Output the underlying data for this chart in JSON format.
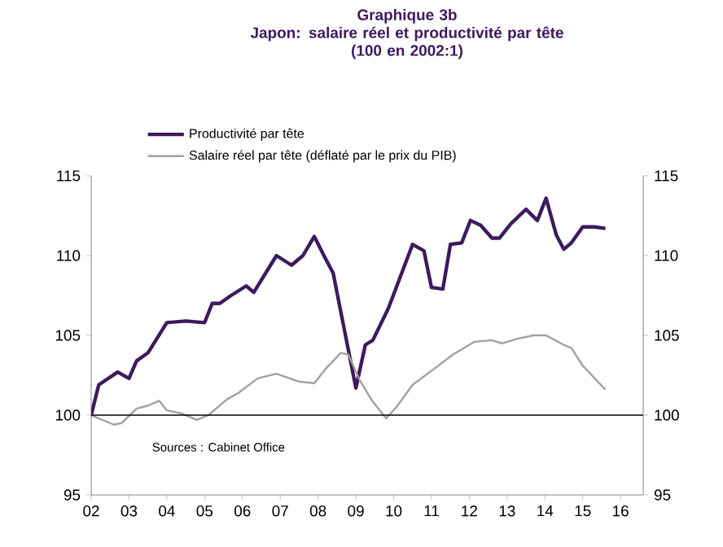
{
  "chart_data": {
    "type": "line",
    "title": "Graphique 3b\nJapon: salaire réel  et  productivité par tête\n(100 en 2002:1)",
    "series": [
      {
        "name": "Productivité par tête",
        "color": "#3d1a5e",
        "x": [
          2002,
          2002.2,
          2002.7,
          2003,
          2003.2,
          2003.5,
          2004.0,
          2004.5,
          2005,
          2005.2,
          2005.4,
          2005.7,
          2006.1,
          2006.3,
          2006.9,
          2007.3,
          2007.6,
          2007.9,
          2008.2,
          2008.4,
          2009.0,
          2009.25,
          2009.45,
          2009.86,
          2010.5,
          2010.8,
          2011.0,
          2011.3,
          2011.5,
          2011.8,
          2012.03,
          2012.3,
          2012.6,
          2012.8,
          2013.1,
          2013.5,
          2013.8,
          2014.03,
          2014.3,
          2014.5,
          2014.7,
          2015.0,
          2015.3,
          2015.6
        ],
        "values": [
          100,
          101.9,
          102.7,
          102.3,
          103.4,
          103.9,
          105.8,
          105.9,
          105.8,
          107.0,
          107.0,
          107.5,
          108.1,
          107.7,
          110.0,
          109.4,
          110.0,
          111.2,
          109.8,
          108.9,
          101.7,
          104.4,
          104.7,
          106.7,
          110.7,
          110.3,
          108.0,
          107.9,
          110.7,
          110.8,
          112.2,
          111.9,
          111.1,
          111.1,
          112.0,
          112.9,
          112.2,
          113.6,
          111.3,
          110.4,
          110.8,
          111.8,
          111.8,
          111.7
        ]
      },
      {
        "name": "Salaire réel par tête (déflaté par le prix du PIB)",
        "color": "#a0a0a0",
        "x": [
          2002,
          2002.6,
          2002.8,
          2003.2,
          2003.5,
          2003.8,
          2004.0,
          2004.4,
          2004.8,
          2005.1,
          2005.6,
          2005.9,
          2006.4,
          2006.9,
          2007.5,
          2007.9,
          2008.2,
          2008.6,
          2008.8,
          2009.1,
          2009.43,
          2009.8,
          2010.07,
          2010.5,
          2011.07,
          2011.57,
          2012.14,
          2012.6,
          2012.86,
          2013.3,
          2013.7,
          2014.03,
          2014.5,
          2014.7,
          2015.0,
          2015.6
        ],
        "values": [
          100,
          99.4,
          99.5,
          100.4,
          100.6,
          100.9,
          100.3,
          100.1,
          99.7,
          100,
          101.0,
          101.4,
          102.3,
          102.6,
          102.1,
          102.0,
          102.9,
          103.9,
          103.8,
          102.2,
          100.9,
          99.8,
          100.5,
          101.9,
          102.9,
          103.8,
          104.6,
          104.7,
          104.5,
          104.8,
          105.0,
          105.0,
          104.4,
          104.2,
          103.1,
          101.6
        ]
      }
    ],
    "xlim": [
      2002,
      2016.6
    ],
    "xticks": [
      {
        "value": 2002,
        "label": "02"
      },
      {
        "value": 2003,
        "label": "03"
      },
      {
        "value": 2004,
        "label": "04"
      },
      {
        "value": 2005,
        "label": "05"
      },
      {
        "value": 2006,
        "label": "06"
      },
      {
        "value": 2007,
        "label": "07"
      },
      {
        "value": 2008,
        "label": "08"
      },
      {
        "value": 2009,
        "label": "09"
      },
      {
        "value": 2010,
        "label": "10"
      },
      {
        "value": 2011,
        "label": "11"
      },
      {
        "value": 2012,
        "label": "12"
      },
      {
        "value": 2013,
        "label": "13"
      },
      {
        "value": 2014,
        "label": "14"
      },
      {
        "value": 2015,
        "label": "15"
      },
      {
        "value": 2016,
        "label": "16"
      }
    ],
    "ylim": [
      95,
      115
    ],
    "yticks": [
      95,
      100,
      105,
      110,
      115
    ],
    "y2lim": [
      95,
      115
    ],
    "y2ticks": [
      95,
      100,
      105,
      110,
      115
    ],
    "ref_lines": [
      {
        "axis": "y",
        "value": 100,
        "color": "#000000"
      }
    ],
    "annotations": [
      "Sources : Cabinet Office"
    ],
    "legend": "top left",
    "grid": false
  }
}
